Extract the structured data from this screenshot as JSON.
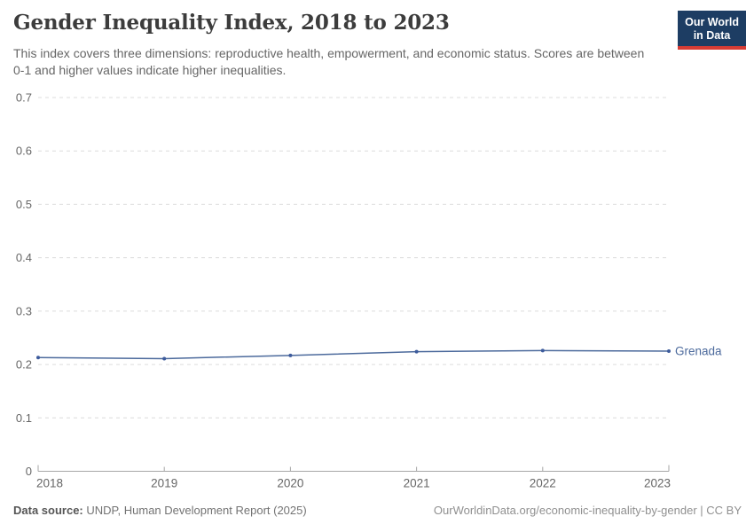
{
  "header": {
    "title": "Gender Inequality Index, 2018 to 2023",
    "subtitle": "This index covers three dimensions: reproductive health, empowerment, and economic status. Scores are between 0-1 and higher values indicate higher inequalities.",
    "logo": {
      "line1": "Our World",
      "line2": "in Data",
      "bg_color": "#1d3d63",
      "accent_color": "#d73c34"
    }
  },
  "chart_data": {
    "type": "line",
    "title": "Gender Inequality Index, 2018 to 2023",
    "x": [
      2018,
      2019,
      2020,
      2021,
      2022,
      2023
    ],
    "series": [
      {
        "name": "Grenada",
        "values": [
          0.213,
          0.211,
          0.217,
          0.224,
          0.226,
          0.225
        ],
        "color": "#4c6a9c",
        "marker_color": "#3d5b9c"
      }
    ],
    "xlabel": "",
    "ylabel": "",
    "ylim": [
      0,
      0.7
    ],
    "yticks": [
      0,
      0.1,
      0.2,
      0.3,
      0.4,
      0.5,
      0.6,
      0.7
    ],
    "grid": "horizontal-dashed",
    "legend_position": "right-of-line-end"
  },
  "footer": {
    "source_label": "Data source:",
    "source_value": "UNDP, Human Development Report (2025)",
    "link": "OurWorldinData.org/economic-inequality-by-gender | CC BY"
  },
  "colors": {
    "grid": "#dcdcdc",
    "axis": "#a6a6a6",
    "tick_label": "#666666",
    "title": "#3c3c3c",
    "subtitle": "#666666",
    "background": "#ffffff"
  }
}
